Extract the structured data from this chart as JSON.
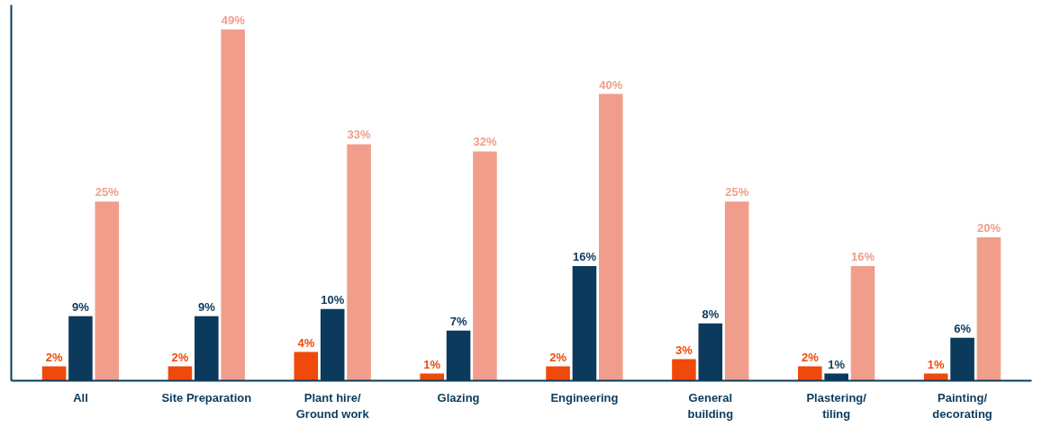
{
  "chart_data": {
    "type": "bar",
    "categories": [
      "All",
      "Site Preparation",
      "Plant hire/\nGround work",
      "Glazing",
      "Engineering",
      "General\nbuilding",
      "Plastering/\ntiling",
      "Painting/\ndecorating"
    ],
    "series": [
      {
        "color": "#ef4a0b",
        "values": [
          2,
          2,
          4,
          1,
          2,
          3,
          2,
          1
        ],
        "value_labels": [
          "2%",
          "2%",
          "4%",
          "1%",
          "2%",
          "3%",
          "2%",
          "1%"
        ]
      },
      {
        "color": "#0b3a5c",
        "values": [
          9,
          9,
          10,
          7,
          16,
          8,
          1,
          6
        ],
        "value_labels": [
          "9%",
          "9%",
          "10%",
          "7%",
          "16%",
          "8%",
          "1%",
          "6%"
        ]
      },
      {
        "color": "#f09e8b",
        "values": [
          25,
          49,
          33,
          32,
          40,
          25,
          16,
          20
        ],
        "value_labels": [
          "25%",
          "49%",
          "33%",
          "32%",
          "40%",
          "25%",
          "16%",
          "20%"
        ]
      }
    ],
    "tick_labels": "x"
  }
}
